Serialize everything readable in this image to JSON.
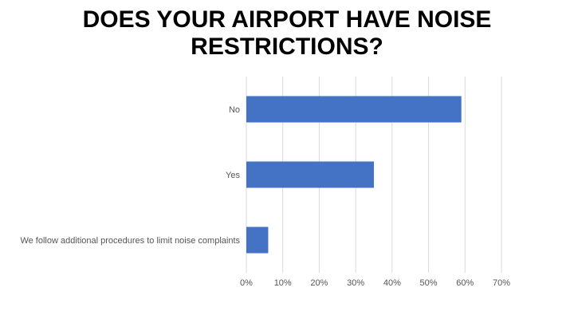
{
  "title": {
    "line1": "DOES YOUR AIRPORT HAVE NOISE",
    "line2": "RESTRICTIONS?"
  },
  "chart_data": {
    "type": "bar",
    "orientation": "horizontal",
    "title": "DOES YOUR AIRPORT HAVE NOISE RESTRICTIONS?",
    "categories": [
      "No",
      "Yes",
      "We follow additional procedures to limit noise complaints"
    ],
    "values": [
      59,
      35,
      6
    ],
    "unit": "%",
    "xlim": [
      0,
      70
    ],
    "xticks": [
      "0%",
      "10%",
      "20%",
      "30%",
      "40%",
      "50%",
      "60%",
      "70%"
    ],
    "grid": "vertical",
    "legend": "none",
    "bar_color": "#4472C4",
    "grid_color": "#D9D9D9"
  }
}
